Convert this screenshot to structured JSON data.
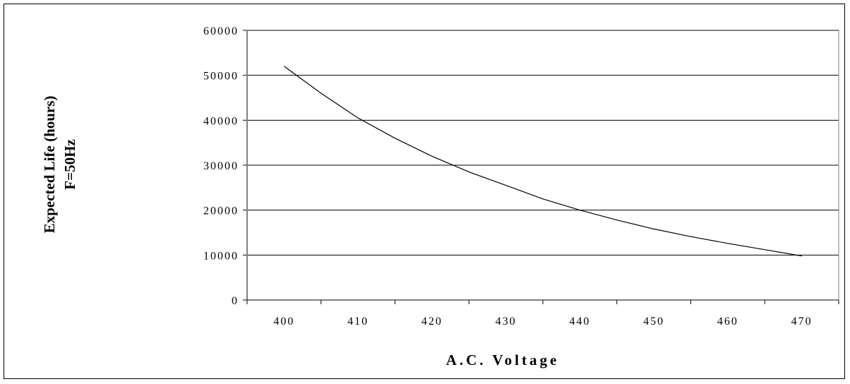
{
  "chart_data": {
    "type": "line",
    "title": "",
    "xlabel": "A.C. Voltage",
    "ylabel_lines": [
      "Expected Life (hours)",
      "F=50Hz"
    ],
    "x_tick_labels": [
      "400",
      "410",
      "420",
      "430",
      "440",
      "450",
      "460",
      "470"
    ],
    "y_tick_labels": [
      "0",
      "10000",
      "20000",
      "30000",
      "40000",
      "50000",
      "60000"
    ],
    "xlim": [
      395,
      475
    ],
    "ylim": [
      0,
      60000
    ],
    "grid": "horizontal",
    "legend": "none",
    "series": [
      {
        "x": [
          400,
          405,
          410,
          415,
          420,
          425,
          430,
          435,
          440,
          445,
          450,
          455,
          460,
          465,
          470
        ],
        "y": [
          52000,
          46000,
          40500,
          36000,
          32000,
          28500,
          25500,
          22500,
          20000,
          17800,
          15800,
          14100,
          12600,
          11200,
          9800
        ]
      }
    ],
    "colors": {
      "line": "#000000",
      "grid": "#000000",
      "axis": "#000000"
    }
  }
}
